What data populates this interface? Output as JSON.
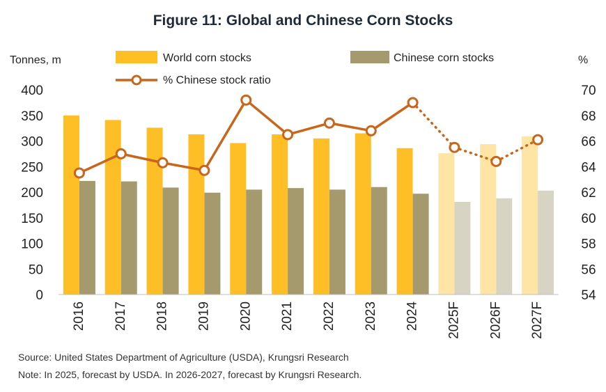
{
  "chart_data": {
    "type": "bar",
    "title": "Figure 11: Global and Chinese Corn Stocks",
    "categories": [
      "2016",
      "2017",
      "2018",
      "2019",
      "2020",
      "2021",
      "2022",
      "2023",
      "2024",
      "2025F",
      "2026F",
      "2027F"
    ],
    "series": [
      {
        "name": "World corn stocks",
        "type": "bar",
        "axis": "left",
        "values": [
          350,
          341,
          326,
          313,
          296,
          313,
          305,
          315,
          286,
          276,
          294,
          309
        ]
      },
      {
        "name": "Chinese corn stocks",
        "type": "bar",
        "axis": "left",
        "values": [
          222,
          221,
          209,
          199,
          205,
          208,
          205,
          210,
          197,
          181,
          188,
          203
        ]
      },
      {
        "name": "% Chinese stock ratio",
        "type": "line",
        "axis": "right",
        "values": [
          63.5,
          65.0,
          64.3,
          63.7,
          69.2,
          66.5,
          67.4,
          66.8,
          69.0,
          65.5,
          64.4,
          66.1
        ]
      }
    ],
    "forecast_categories": [
      "2025F",
      "2026F",
      "2027F"
    ],
    "ylabel": "Tonnes, m",
    "y2label": "%",
    "ylim": [
      0,
      400
    ],
    "y2lim": [
      54,
      70
    ],
    "yticks": [
      0,
      50,
      100,
      150,
      200,
      250,
      300,
      350,
      400
    ],
    "y2ticks": [
      54,
      56,
      58,
      60,
      62,
      64,
      66,
      68,
      70
    ],
    "grid": false,
    "legend_position": "top",
    "colors": {
      "world": "#FDBF25",
      "world_forecast": "#FEE5A6",
      "china": "#A49A6E",
      "china_forecast": "#D8D4C4",
      "ratio": "#C8661C"
    }
  },
  "notes": {
    "source": "Source: United States Department of Agriculture (USDA), Krungsri Research",
    "forecast": "Note: In 2025, forecast by USDA. In 2026-2027, forecast by Krungsri Research."
  }
}
